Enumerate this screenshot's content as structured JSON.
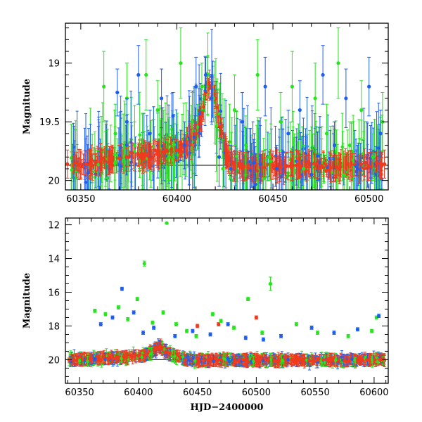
{
  "chart_data": [
    {
      "type": "scatter",
      "panel": "top",
      "title": "",
      "xlabel": "",
      "ylabel": "Magnitude",
      "xlim": [
        60342,
        60510
      ],
      "ylim": [
        20.08,
        18.66
      ],
      "y_inverted": true,
      "xticks": [
        60350,
        60400,
        60450,
        60500
      ],
      "yticks": [
        19,
        19.5,
        20
      ],
      "error_bars": true,
      "grid": false,
      "legend": "none",
      "baseline_magnitude": 19.87,
      "series": [
        {
          "color": "#f03a1f",
          "x": [
            60343,
            60350,
            60355,
            60360,
            60365,
            60370,
            60375,
            60380,
            60385,
            60390,
            60395,
            60400,
            60405,
            60410,
            60413,
            60415,
            60416,
            60418,
            60420,
            60423,
            60426,
            60430,
            60435,
            60440,
            60450,
            60460,
            60470,
            60480,
            60490,
            60500,
            60508
          ],
          "y": [
            19.86,
            19.87,
            19.86,
            19.84,
            19.82,
            19.81,
            19.8,
            19.78,
            19.79,
            19.77,
            19.75,
            19.74,
            19.7,
            19.6,
            19.45,
            19.25,
            19.18,
            19.2,
            19.3,
            19.55,
            19.8,
            19.87,
            19.88,
            19.9,
            19.87,
            19.88,
            19.86,
            19.89,
            19.87,
            19.88,
            19.86
          ],
          "y_err": [
            0.12,
            0.12,
            0.13,
            0.12,
            0.11,
            0.11,
            0.12,
            0.1,
            0.11,
            0.1,
            0.1,
            0.09,
            0.08,
            0.08,
            0.07,
            0.06,
            0.05,
            0.06,
            0.07,
            0.08,
            0.1,
            0.12,
            0.12,
            0.12,
            0.12,
            0.12,
            0.12,
            0.12,
            0.12,
            0.12,
            0.12
          ]
        },
        {
          "color": "#28e31f",
          "x": [
            60362,
            60368,
            60374,
            60378,
            60384,
            60390,
            60396,
            60402,
            60408,
            60413,
            60416,
            60419,
            60424,
            60430,
            60436,
            60442,
            60448,
            60454,
            60460,
            60466,
            60472,
            60478,
            60484,
            60490,
            60496,
            60502,
            60507
          ],
          "y": [
            19.2,
            19.6,
            19.3,
            19.7,
            19.1,
            19.4,
            19.8,
            19.0,
            19.5,
            19.2,
            19.1,
            19.3,
            19.9,
            19.4,
            19.7,
            19.1,
            19.8,
            19.5,
            19.2,
            19.9,
            19.3,
            19.6,
            19.0,
            19.7,
            19.4,
            19.8,
            19.5
          ],
          "y_err": [
            0.3,
            0.25,
            0.3,
            0.2,
            0.3,
            0.25,
            0.2,
            0.3,
            0.25,
            0.2,
            0.15,
            0.2,
            0.25,
            0.3,
            0.25,
            0.3,
            0.2,
            0.25,
            0.3,
            0.2,
            0.3,
            0.25,
            0.3,
            0.2,
            0.25,
            0.2,
            0.25
          ]
        },
        {
          "color": "#1f5ff0",
          "x": [
            60369,
            60374,
            60380,
            60386,
            60392,
            60398,
            60404,
            60410,
            60415,
            60418,
            60422,
            60428,
            60434,
            60440,
            60446,
            60452,
            60458,
            60464,
            60470,
            60476,
            60482,
            60488,
            60494,
            60500,
            60506
          ],
          "y": [
            19.25,
            19.5,
            19.1,
            19.6,
            19.3,
            19.45,
            19.7,
            19.2,
            19.1,
            19.3,
            19.8,
            19.9,
            19.5,
            19.85,
            19.2,
            19.9,
            19.6,
            19.4,
            19.95,
            19.1,
            19.7,
            19.3,
            19.9,
            19.2,
            19.6
          ],
          "y_err": [
            0.2,
            0.2,
            0.25,
            0.2,
            0.25,
            0.2,
            0.2,
            0.25,
            0.15,
            0.2,
            0.25,
            0.2,
            0.25,
            0.2,
            0.25,
            0.2,
            0.2,
            0.25,
            0.2,
            0.25,
            0.2,
            0.25,
            0.2,
            0.25,
            0.2
          ]
        }
      ]
    },
    {
      "type": "scatter",
      "panel": "bottom",
      "title": "",
      "xlabel": "HJD−2400000",
      "ylabel": "Magnitude",
      "xlim": [
        60338,
        60612
      ],
      "ylim": [
        21.4,
        11.6
      ],
      "y_inverted": true,
      "xticks": [
        60350,
        60400,
        60450,
        60500,
        60550,
        60600
      ],
      "yticks": [
        12,
        14,
        16,
        18,
        20
      ],
      "error_bars": true,
      "grid": false,
      "legend": "none",
      "baseline_magnitude": 20.0,
      "series": [
        {
          "color": "#f03a1f",
          "x": [
            60345,
            60360,
            60375,
            60390,
            60405,
            60414,
            60418,
            60425,
            60440,
            60455,
            60470,
            60485,
            60500,
            60515,
            60530,
            60545,
            60560,
            60575,
            60590,
            60605,
            60450,
            60468,
            60500
          ],
          "y": [
            20.0,
            19.95,
            19.9,
            19.85,
            19.75,
            19.4,
            19.2,
            19.6,
            20.0,
            20.05,
            20.0,
            20.05,
            20.0,
            20.05,
            20.0,
            20.05,
            20.0,
            20.05,
            20.0,
            20.0,
            18.0,
            17.9,
            17.5
          ],
          "y_err": [
            0.3,
            0.3,
            0.3,
            0.3,
            0.3,
            0.2,
            0.2,
            0.3,
            0.3,
            0.3,
            0.3,
            0.3,
            0.3,
            0.3,
            0.3,
            0.3,
            0.3,
            0.3,
            0.3,
            0.3,
            0.1,
            0.1,
            0.1
          ]
        },
        {
          "color": "#28e31f",
          "x": [
            60363,
            60372,
            60383,
            60391,
            60399,
            60405,
            60412,
            60421,
            60424,
            60432,
            60441,
            60449,
            60463,
            60470,
            60481,
            60493,
            60505,
            60512,
            60534,
            60552,
            60578,
            60598,
            60602
          ],
          "y": [
            17.1,
            17.3,
            16.9,
            17.6,
            16.4,
            14.3,
            17.8,
            17.2,
            11.9,
            17.9,
            18.3,
            18.6,
            17.3,
            17.7,
            18.1,
            16.4,
            18.4,
            15.5,
            17.9,
            18.4,
            18.6,
            18.3,
            17.5
          ],
          "y_err": [
            0.1,
            0.1,
            0.1,
            0.1,
            0.1,
            0.15,
            0.1,
            0.1,
            0.05,
            0.1,
            0.1,
            0.1,
            0.1,
            0.1,
            0.1,
            0.1,
            0.1,
            0.4,
            0.1,
            0.1,
            0.1,
            0.1,
            0.1
          ]
        },
        {
          "color": "#1f5ff0",
          "x": [
            60368,
            60378,
            60386,
            60396,
            60404,
            60413,
            60431,
            60446,
            60461,
            60476,
            60491,
            60506,
            60521,
            60547,
            60566,
            60586,
            60604
          ],
          "y": [
            17.9,
            17.5,
            15.8,
            17.2,
            18.4,
            18.1,
            18.6,
            18.3,
            18.5,
            17.9,
            18.7,
            18.8,
            18.6,
            18.1,
            18.4,
            18.2,
            17.4
          ],
          "y_err": [
            0.1,
            0.1,
            0.1,
            0.1,
            0.1,
            0.1,
            0.1,
            0.1,
            0.1,
            0.1,
            0.1,
            0.1,
            0.1,
            0.1,
            0.1,
            0.1,
            0.1
          ]
        }
      ]
    }
  ]
}
